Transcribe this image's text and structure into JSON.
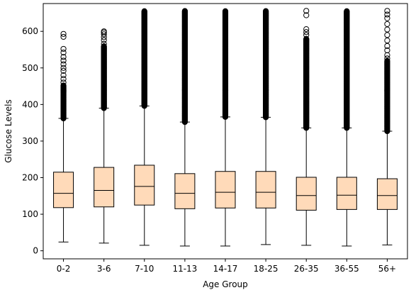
{
  "chart_data": {
    "type": "box",
    "title": "",
    "xlabel": "Age Group",
    "ylabel": "Glucose Levels",
    "ylim": [
      -22,
      676
    ],
    "yticks": [
      0,
      100,
      200,
      300,
      400,
      500,
      600
    ],
    "grid": false,
    "box_color": "#ffdab9",
    "categories": [
      "0-2",
      "3-6",
      "7-10",
      "11-13",
      "14-17",
      "18-25",
      "26-35",
      "36-55",
      "56+"
    ],
    "boxes": [
      {
        "label": "0-2",
        "whisker_low": 24,
        "q1": 118,
        "median": 157,
        "q3": 215,
        "whisker_high": 362,
        "outliers_dense": [
          362,
          452
        ],
        "outliers_sparse": [
          460,
          470,
          480,
          492,
          500,
          510,
          520,
          530,
          542,
          552,
          585,
          593
        ]
      },
      {
        "label": "3-6",
        "whisker_low": 21,
        "q1": 120,
        "median": 165,
        "q3": 228,
        "whisker_high": 390,
        "outliers_dense": [
          390,
          560
        ],
        "outliers_sparse": [
          566,
          576,
          584,
          592,
          597,
          600
        ]
      },
      {
        "label": "7-10",
        "whisker_low": 15,
        "q1": 125,
        "median": 176,
        "q3": 234,
        "whisker_high": 396,
        "outliers_dense": [
          396,
          656
        ],
        "outliers_sparse": []
      },
      {
        "label": "11-13",
        "whisker_low": 13,
        "q1": 115,
        "median": 157,
        "q3": 211,
        "whisker_high": 352,
        "outliers_dense": [
          352,
          656
        ],
        "outliers_sparse": []
      },
      {
        "label": "14-17",
        "whisker_low": 13,
        "q1": 117,
        "median": 160,
        "q3": 217,
        "whisker_high": 366,
        "outliers_dense": [
          366,
          656
        ],
        "outliers_sparse": []
      },
      {
        "label": "18-25",
        "whisker_low": 17,
        "q1": 117,
        "median": 160,
        "q3": 217,
        "whisker_high": 365,
        "outliers_dense": [
          365,
          656
        ],
        "outliers_sparse": []
      },
      {
        "label": "26-35",
        "whisker_low": 15,
        "q1": 111,
        "median": 151,
        "q3": 201,
        "whisker_high": 336,
        "outliers_dense": [
          336,
          580
        ],
        "outliers_sparse": [
          590,
          598,
          606,
          644,
          656
        ]
      },
      {
        "label": "36-55",
        "whisker_low": 13,
        "q1": 113,
        "median": 152,
        "q3": 201,
        "whisker_high": 336,
        "outliers_dense": [
          336,
          656
        ],
        "outliers_sparse": []
      },
      {
        "label": "56+",
        "whisker_low": 16,
        "q1": 113,
        "median": 151,
        "q3": 197,
        "whisker_high": 327,
        "outliers_dense": [
          327,
          520
        ],
        "outliers_sparse": [
          526,
          535,
          548,
          560,
          575,
          590,
          605,
          620,
          636,
          646,
          656
        ]
      }
    ]
  }
}
